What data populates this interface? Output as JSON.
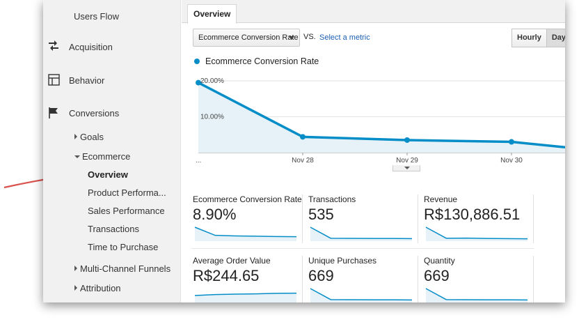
{
  "sidebar": {
    "users_flow": "Users Flow",
    "acquisition": "Acquisition",
    "behavior": "Behavior",
    "conversions": "Conversions",
    "goals": "Goals",
    "ecommerce": "Ecommerce",
    "overview": "Overview",
    "product_performance": "Product Performa...",
    "sales_performance": "Sales Performance",
    "transactions": "Transactions",
    "time_to_purchase": "Time to Purchase",
    "multi_channel": "Multi-Channel Funnels",
    "attribution": "Attribution"
  },
  "tabs": {
    "overview": "Overview"
  },
  "controls": {
    "metric_select": "Ecommerce Conversion Rate",
    "vs": "VS.",
    "select_metric": "Select a metric",
    "hourly": "Hourly",
    "day": "Day"
  },
  "chart_data": {
    "type": "line",
    "series": [
      {
        "name": "Ecommerce Conversion Rate",
        "values": [
          19.5,
          4.4,
          3.5,
          3.0,
          1.5
        ]
      }
    ],
    "x": [
      "...",
      "Nov 28",
      "Nov 29",
      "Nov 30",
      ""
    ],
    "y_ticks": [
      "20.00%",
      "10.00%"
    ],
    "ylim": [
      0,
      20
    ],
    "grid": true,
    "color": "#058dc7"
  },
  "scorecards": [
    {
      "label": "Ecommerce Conversion Rate",
      "value": "8.90%",
      "spark": [
        12,
        5,
        4.5,
        4.3,
        4.0,
        3.8
      ]
    },
    {
      "label": "Transactions",
      "value": "535",
      "spark": [
        12,
        2.5,
        2.4,
        2.3,
        2.3,
        2.2
      ]
    },
    {
      "label": "Revenue",
      "value": "R$130,886.51",
      "spark": [
        12,
        2.5,
        2.6,
        2.3,
        2.2,
        2.0
      ]
    },
    {
      "label": "Average Order Value",
      "value": "R$244.65",
      "spark": [
        6,
        6.8,
        7.2,
        7.4,
        7.9,
        8.0
      ]
    },
    {
      "label": "Unique Purchases",
      "value": "669",
      "spark": [
        12,
        2.5,
        2.4,
        2.3,
        2.3,
        2.2
      ]
    },
    {
      "label": "Quantity",
      "value": "669",
      "spark": [
        12,
        2.5,
        2.4,
        2.3,
        2.3,
        2.2
      ]
    }
  ],
  "colors": {
    "accent": "#058dc7",
    "fill": "#e6f2f8",
    "arrow": "#d9534f"
  }
}
